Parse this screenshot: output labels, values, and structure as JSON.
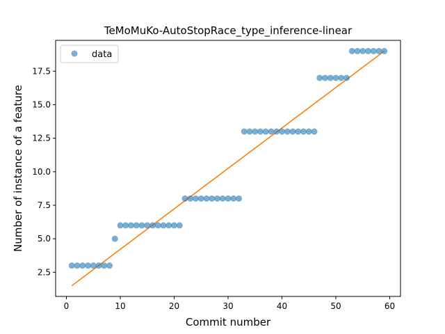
{
  "chart_data": {
    "type": "scatter",
    "title": "TeMoMuKo-AutoStopRace_type_inference-linear",
    "xlabel": "Commit number",
    "ylabel": "Number of instance of a feature",
    "xlim": [
      -2,
      62
    ],
    "ylim": [
      0.7,
      19.8
    ],
    "xticks": [
      0,
      10,
      20,
      30,
      40,
      50,
      60
    ],
    "xtick_labels": [
      "0",
      "10",
      "20",
      "30",
      "40",
      "50",
      "60"
    ],
    "yticks": [
      2.5,
      5.0,
      7.5,
      10.0,
      12.5,
      15.0,
      17.5
    ],
    "ytick_labels": [
      "2.5",
      "5.0",
      "7.5",
      "10.0",
      "12.5",
      "15.0",
      "17.5"
    ],
    "legend": {
      "position": "top-left",
      "entries": [
        "data"
      ]
    },
    "colors": {
      "points": "#1f77b4",
      "fit": "#ff7f0e"
    },
    "series": [
      {
        "name": "data",
        "kind": "scatter",
        "x": [
          1,
          2,
          3,
          4,
          5,
          6,
          7,
          8,
          9,
          10,
          11,
          12,
          13,
          14,
          15,
          16,
          17,
          18,
          19,
          20,
          21,
          22,
          23,
          24,
          25,
          26,
          27,
          28,
          29,
          30,
          31,
          32,
          33,
          34,
          35,
          36,
          37,
          38,
          39,
          40,
          41,
          42,
          43,
          44,
          45,
          46,
          47,
          48,
          49,
          50,
          51,
          52,
          53,
          54,
          55,
          56,
          57,
          58,
          59
        ],
        "y": [
          3,
          3,
          3,
          3,
          3,
          3,
          3,
          3,
          5,
          6,
          6,
          6,
          6,
          6,
          6,
          6,
          6,
          6,
          6,
          6,
          6,
          8,
          8,
          8,
          8,
          8,
          8,
          8,
          8,
          8,
          8,
          8,
          13,
          13,
          13,
          13,
          13,
          13,
          13,
          13,
          13,
          13,
          13,
          13,
          13,
          13,
          17,
          17,
          17,
          17,
          17,
          17,
          19,
          19,
          19,
          19,
          19,
          19,
          19
        ]
      },
      {
        "kind": "line",
        "x": [
          1,
          59
        ],
        "y": [
          1.5,
          19.0
        ]
      }
    ]
  }
}
